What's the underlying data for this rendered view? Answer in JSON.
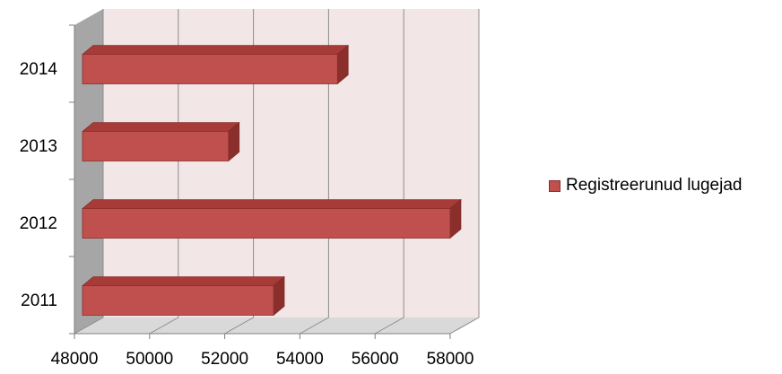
{
  "chart_data": {
    "type": "bar",
    "orientation": "horizontal",
    "style": "3d",
    "categories": [
      "2011",
      "2012",
      "2013",
      "2014"
    ],
    "series": [
      {
        "name": "Registreerunud lugejad",
        "values": [
          53300,
          58000,
          52100,
          55000
        ],
        "color": "#c0504d"
      }
    ],
    "xlim": [
      48000,
      58000
    ],
    "xticks": [
      48000,
      50000,
      52000,
      54000,
      56000,
      58000
    ],
    "title": "",
    "xlabel": "",
    "ylabel": "",
    "grid": true,
    "legend_position": "right"
  },
  "colors": {
    "bar_front": "#c0504d",
    "bar_top": "#a63b38",
    "bar_side": "#8b2f2c",
    "wall": "#f3e6e6",
    "side_wall": "#a6a6a6",
    "floor": "#d9d9d9",
    "grid": "#8c8c8c"
  }
}
